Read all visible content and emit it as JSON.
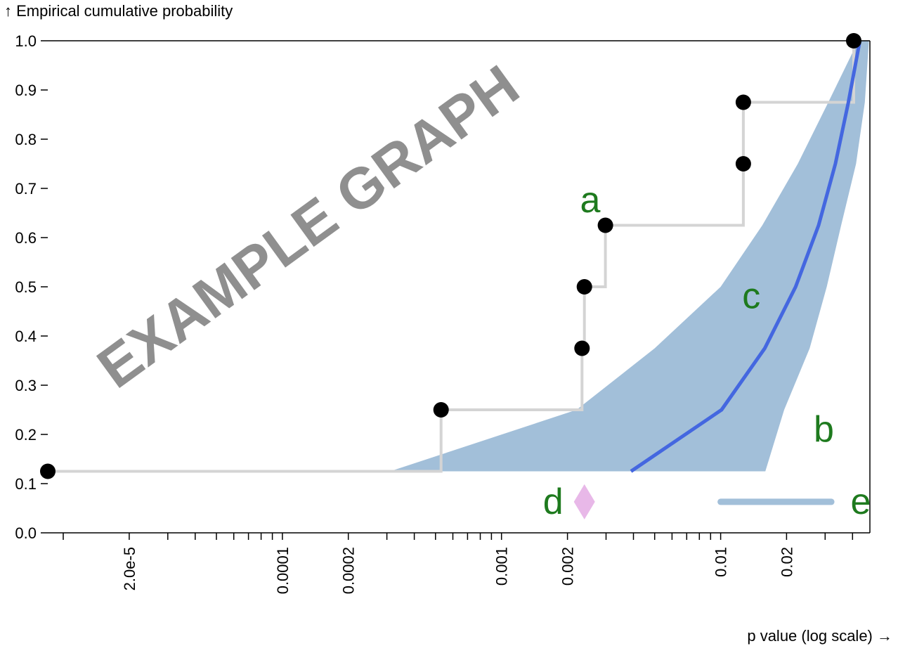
{
  "chart_data": {
    "type": "line",
    "title": "",
    "xlabel": "p value (log scale) →",
    "ylabel": "↑ Empirical cumulative probability",
    "x_scale": "log",
    "xlim": [
      8.5e-06,
      0.048
    ],
    "ylim": [
      0,
      1
    ],
    "grid": false,
    "watermark": "EXAMPLE GRAPH",
    "x_ticks": [
      1e-05,
      2e-05,
      3e-05,
      4e-05,
      5e-05,
      6e-05,
      7e-05,
      8e-05,
      9e-05,
      0.0001,
      0.0002,
      0.0003,
      0.0004,
      0.0005,
      0.0006,
      0.0007,
      0.0008,
      0.0009,
      0.001,
      0.002,
      0.003,
      0.004,
      0.005,
      0.006,
      0.007,
      0.008,
      0.009,
      0.01,
      0.02,
      0.03,
      0.04
    ],
    "x_tick_labels": [
      {
        "value": 2e-05,
        "label": "2.0e-5"
      },
      {
        "value": 0.0001,
        "label": "0.0001"
      },
      {
        "value": 0.0002,
        "label": "0.0002"
      },
      {
        "value": 0.001,
        "label": "0.001"
      },
      {
        "value": 0.002,
        "label": "0.002"
      },
      {
        "value": 0.01,
        "label": "0.01"
      },
      {
        "value": 0.02,
        "label": "0.02"
      }
    ],
    "y_ticks": [
      {
        "value": 0.0,
        "label": "0.0"
      },
      {
        "value": 0.1,
        "label": "0.1"
      },
      {
        "value": 0.2,
        "label": "0.2"
      },
      {
        "value": 0.3,
        "label": "0.3"
      },
      {
        "value": 0.4,
        "label": "0.4"
      },
      {
        "value": 0.5,
        "label": "0.5"
      },
      {
        "value": 0.6,
        "label": "0.6"
      },
      {
        "value": 0.7,
        "label": "0.7"
      },
      {
        "value": 0.8,
        "label": "0.8"
      },
      {
        "value": 0.9,
        "label": "0.9"
      },
      {
        "value": 1.0,
        "label": "1.0"
      }
    ],
    "band": {
      "color": "#a2bfd9",
      "upper": [
        [
          0.00031,
          0.125
        ],
        [
          0.0022,
          0.25
        ],
        [
          0.005,
          0.375
        ],
        [
          0.01,
          0.5
        ],
        [
          0.0155,
          0.625
        ],
        [
          0.0225,
          0.75
        ],
        [
          0.031,
          0.875
        ],
        [
          0.0425,
          1.0
        ]
      ],
      "lower": [
        [
          0.0475,
          1.0
        ],
        [
          0.0455,
          0.875
        ],
        [
          0.0415,
          0.75
        ],
        [
          0.0355,
          0.625
        ],
        [
          0.0305,
          0.5
        ],
        [
          0.0255,
          0.375
        ],
        [
          0.0195,
          0.25
        ],
        [
          0.016,
          0.125
        ]
      ]
    },
    "expected_line": {
      "color": "#4467e0",
      "points": [
        [
          0.0039,
          0.125
        ],
        [
          0.0101,
          0.25
        ],
        [
          0.0159,
          0.375
        ],
        [
          0.022,
          0.5
        ],
        [
          0.028,
          0.625
        ],
        [
          0.0334,
          0.75
        ],
        [
          0.0383,
          0.875
        ],
        [
          0.0432,
          1.0
        ]
      ]
    },
    "ecdf": {
      "line_color": "#d4d4d4",
      "point_color": "#000000",
      "points": [
        [
          8.5e-06,
          0.125
        ],
        [
          0.00053,
          0.25
        ],
        [
          0.00233,
          0.375
        ],
        [
          0.00239,
          0.5
        ],
        [
          0.00298,
          0.625
        ],
        [
          0.0127,
          0.75
        ],
        [
          0.0127,
          0.875
        ],
        [
          0.0405,
          1.0
        ]
      ]
    },
    "marker_d": {
      "x": 0.00239,
      "y": 0.063,
      "color": "#e8b8e8",
      "shape": "diamond"
    },
    "legend_line": {
      "x": [
        0.01,
        0.032
      ],
      "y": 0.063,
      "color": "#a2bfd9"
    },
    "annotations": [
      {
        "text": "a",
        "x": 0.00254,
        "y": 0.676
      },
      {
        "text": "b",
        "x": 0.0296,
        "y": 0.21
      },
      {
        "text": "c",
        "x": 0.0138,
        "y": 0.481
      },
      {
        "text": "d",
        "x": 0.00172,
        "y": 0.063
      },
      {
        "text": "e",
        "x": 0.0436,
        "y": 0.063
      }
    ]
  }
}
